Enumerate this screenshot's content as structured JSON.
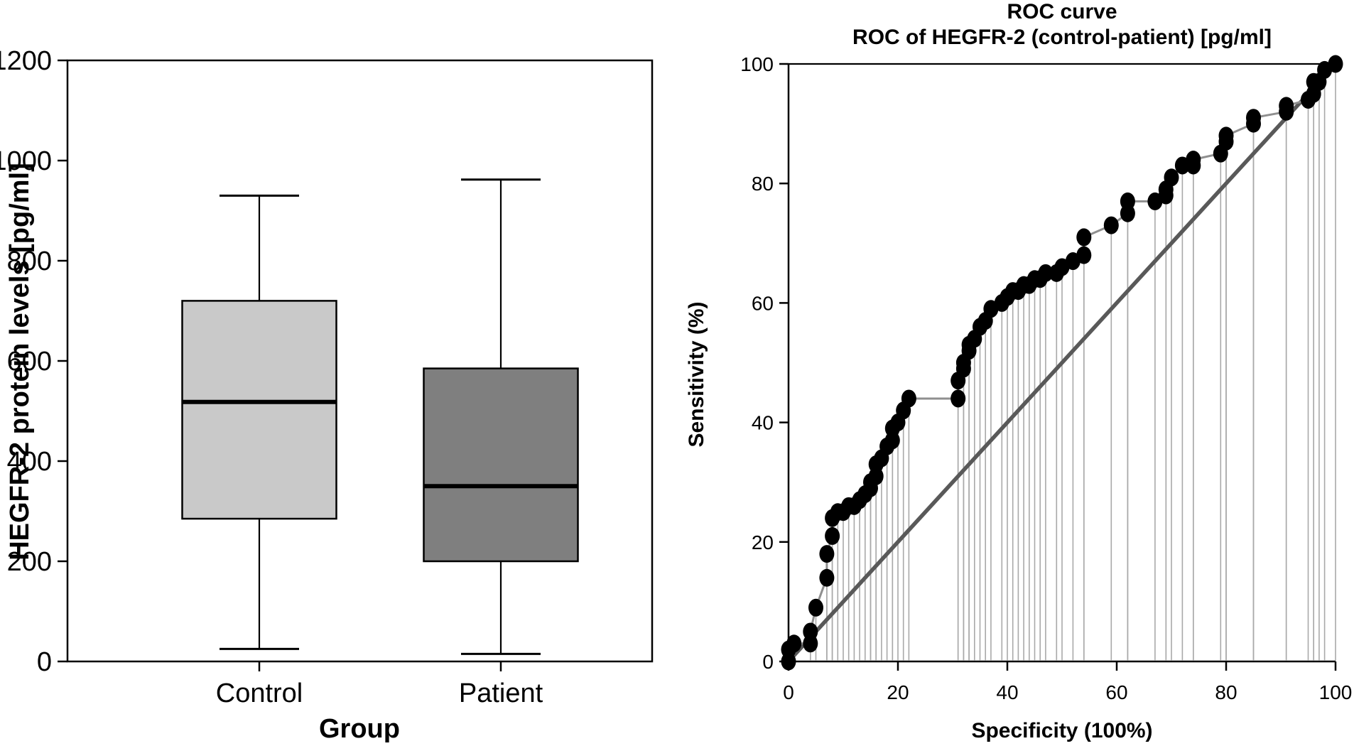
{
  "figure": {
    "background": "#ffffff",
    "panel_count": 2
  },
  "chart_data": [
    {
      "id": "boxplot",
      "type": "boxplot",
      "xlabel": "Group",
      "ylabel": "HEGFR-2 protein levels [pg/ml]",
      "ylim": [
        0,
        1200
      ],
      "yticks": [
        0,
        200,
        400,
        600,
        800,
        1000,
        1200
      ],
      "categories": [
        "Control",
        "Patient"
      ],
      "grid": false,
      "series": [
        {
          "name": "Control",
          "min": 25,
          "q1": 285,
          "median": 518,
          "q3": 720,
          "max": 930,
          "fill": "#c9c9c9",
          "stroke": "#000000"
        },
        {
          "name": "Patient",
          "min": 15,
          "q1": 200,
          "median": 350,
          "q3": 585,
          "max": 962,
          "fill": "#7f7f7f",
          "stroke": "#000000"
        }
      ]
    },
    {
      "id": "roc",
      "type": "scatter",
      "title": "ROC curve",
      "subtitle": "ROC of HEGFR-2 (control-patient) [pg/ml]",
      "xlabel": "Specificity (100%)",
      "ylabel": "Sensitivity (%)",
      "xlim": [
        0,
        100
      ],
      "ylim": [
        0,
        100
      ],
      "xticks": [
        0,
        20,
        40,
        60,
        80,
        100
      ],
      "yticks": [
        0,
        20,
        40,
        60,
        80,
        100
      ],
      "grid": false,
      "legend": "none",
      "reference_line": {
        "from": [
          0,
          0
        ],
        "to": [
          100,
          100
        ],
        "color": "#595959"
      },
      "colors": {
        "point": "#000000",
        "curve": "#8f8f8f",
        "drop_line": "#a9a9a9"
      },
      "points": [
        [
          0,
          0
        ],
        [
          0,
          2
        ],
        [
          1,
          3
        ],
        [
          4,
          3
        ],
        [
          4,
          5
        ],
        [
          5,
          9
        ],
        [
          7,
          14
        ],
        [
          7,
          18
        ],
        [
          8,
          21
        ],
        [
          8,
          24
        ],
        [
          9,
          25
        ],
        [
          10,
          25
        ],
        [
          11,
          26
        ],
        [
          12,
          26
        ],
        [
          13,
          27
        ],
        [
          14,
          28
        ],
        [
          15,
          29
        ],
        [
          15,
          30
        ],
        [
          16,
          31
        ],
        [
          16,
          33
        ],
        [
          17,
          34
        ],
        [
          18,
          36
        ],
        [
          19,
          37
        ],
        [
          19,
          39
        ],
        [
          20,
          40
        ],
        [
          21,
          42
        ],
        [
          22,
          44
        ],
        [
          31,
          44
        ],
        [
          31,
          47
        ],
        [
          32,
          49
        ],
        [
          32,
          50
        ],
        [
          33,
          52
        ],
        [
          33,
          53
        ],
        [
          34,
          54
        ],
        [
          35,
          56
        ],
        [
          36,
          57
        ],
        [
          37,
          59
        ],
        [
          39,
          60
        ],
        [
          40,
          61
        ],
        [
          41,
          62
        ],
        [
          42,
          62
        ],
        [
          43,
          63
        ],
        [
          44,
          63
        ],
        [
          45,
          64
        ],
        [
          46,
          64
        ],
        [
          47,
          65
        ],
        [
          49,
          65
        ],
        [
          50,
          66
        ],
        [
          52,
          67
        ],
        [
          54,
          68
        ],
        [
          54,
          71
        ],
        [
          59,
          73
        ],
        [
          62,
          75
        ],
        [
          62,
          77
        ],
        [
          67,
          77
        ],
        [
          69,
          78
        ],
        [
          69,
          79
        ],
        [
          70,
          81
        ],
        [
          72,
          83
        ],
        [
          74,
          83
        ],
        [
          74,
          84
        ],
        [
          79,
          85
        ],
        [
          80,
          87
        ],
        [
          80,
          88
        ],
        [
          85,
          90
        ],
        [
          85,
          91
        ],
        [
          91,
          92
        ],
        [
          91,
          93
        ],
        [
          95,
          94
        ],
        [
          96,
          95
        ],
        [
          96,
          97
        ],
        [
          97,
          97
        ],
        [
          98,
          99
        ],
        [
          100,
          100
        ]
      ]
    }
  ]
}
